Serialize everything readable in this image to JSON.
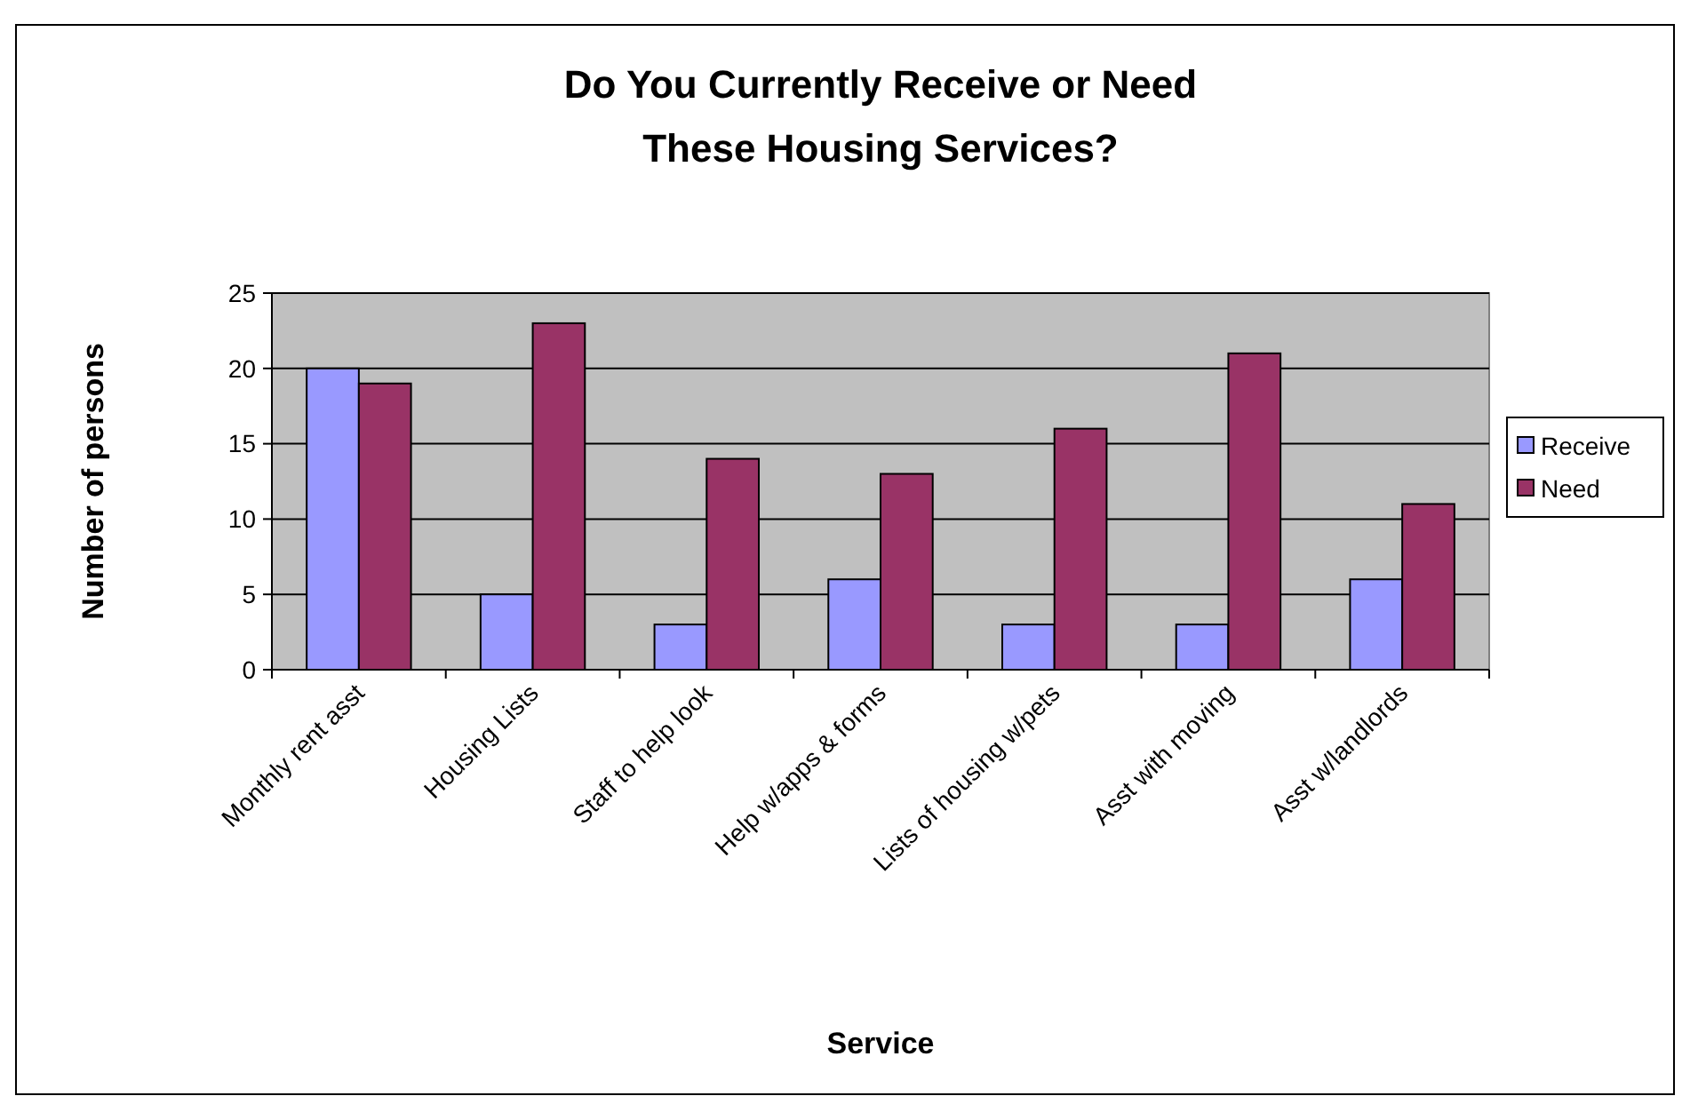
{
  "chart_data": {
    "type": "bar",
    "title": "Do You Currently Receive or Need\nThese Housing Services?",
    "xlabel": "Service",
    "ylabel": "Number of persons",
    "categories": [
      "Monthly rent asst",
      "Housing Lists",
      "Staff to help look",
      "Help w/apps & forms",
      "Lists of housing w/pets",
      "Asst with moving",
      "Asst w/landlords"
    ],
    "series": [
      {
        "name": "Receive",
        "color": "#9999ff",
        "values": [
          20,
          5,
          3,
          6,
          3,
          3,
          6
        ]
      },
      {
        "name": "Need",
        "color": "#993366",
        "values": [
          19,
          23,
          14,
          13,
          16,
          21,
          11
        ]
      }
    ],
    "ylim": [
      0,
      25
    ],
    "yticks": [
      0,
      5,
      10,
      15,
      20,
      25
    ],
    "grid": "y",
    "legend": "right"
  }
}
